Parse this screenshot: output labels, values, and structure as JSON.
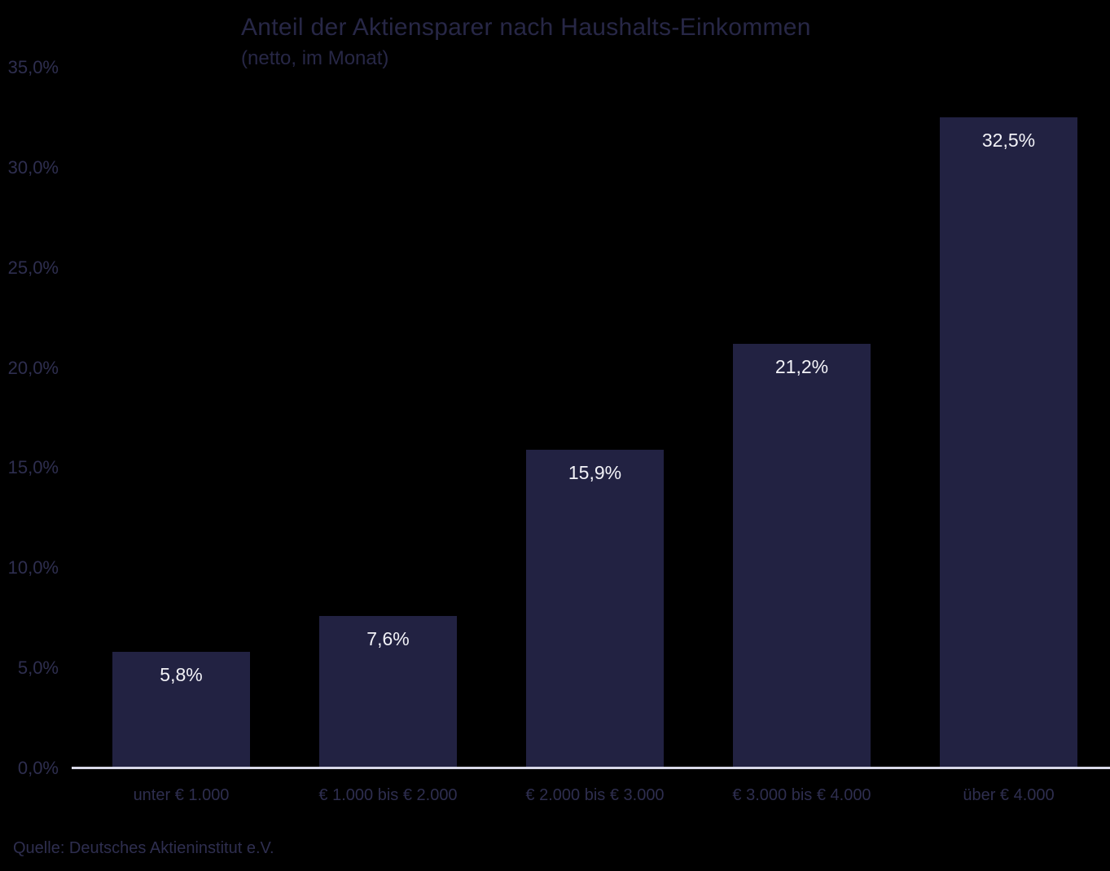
{
  "header": {
    "title": "Anteil der Aktiensparer nach Haushalts-Einkommen",
    "subtitle": "(netto, im Monat)"
  },
  "footer": {
    "source": "Quelle: Deutsches Aktieninstitut e.V."
  },
  "chart_data": {
    "type": "bar",
    "title": "Anteil der Aktiensparer nach Haushalts-Einkommen",
    "subtitle": "(netto, im Monat)",
    "categories": [
      "unter € 1.000",
      "€ 1.000 bis € 2.000",
      "€ 2.000 bis € 3.000",
      "€ 3.000 bis € 4.000",
      "über € 4.000"
    ],
    "values": [
      5.8,
      7.6,
      15.9,
      21.2,
      32.5
    ],
    "value_labels": [
      "5,8%",
      "7,6%",
      "15,9%",
      "21,2%",
      "32,5%"
    ],
    "y_ticks": [
      {
        "value": 0,
        "label": "0,0%"
      },
      {
        "value": 5,
        "label": "5,0%"
      },
      {
        "value": 10,
        "label": "10,0%"
      },
      {
        "value": 15,
        "label": "15,0%"
      },
      {
        "value": 20,
        "label": "20,0%"
      },
      {
        "value": 25,
        "label": "25,0%"
      },
      {
        "value": 30,
        "label": "30,0%"
      },
      {
        "value": 35,
        "label": "35,0%"
      }
    ],
    "ylim": [
      0,
      35
    ],
    "xlabel": "",
    "ylabel": "",
    "grid": false,
    "legend": false,
    "value_labels_position": "inside-top",
    "source": "Quelle: Deutsches Aktieninstitut e.V.",
    "colors": {
      "background": "#000000",
      "bar": "#222242",
      "axis_line": "#d8d8e8",
      "tick_label": "#2e2e4f",
      "title": "#272746",
      "value_label": "#f2f2f7"
    }
  }
}
